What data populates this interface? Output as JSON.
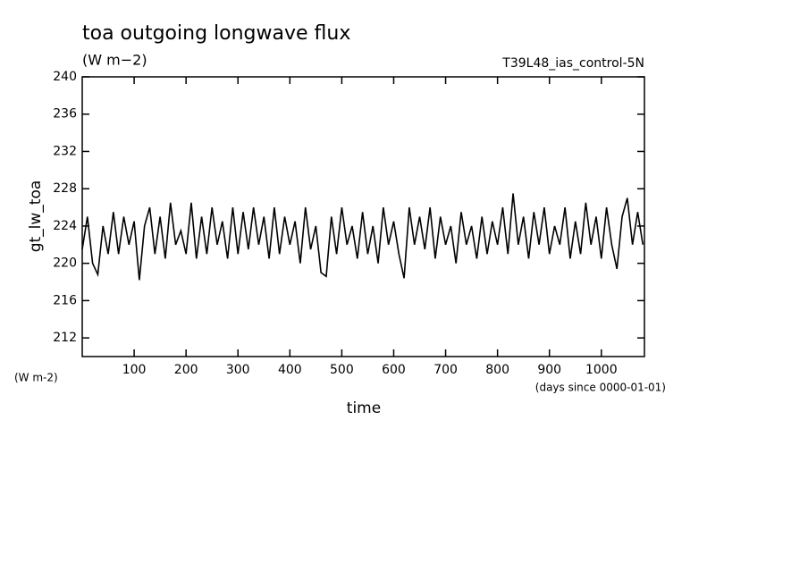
{
  "chart_data": {
    "type": "line",
    "title": "toa outgoing longwave flux",
    "subtitle": "(W m−2)",
    "annotation": "T39L48_ias_control-5N",
    "ylabel": "gt_lw_toa",
    "yunits": "(W m-2)",
    "xlabel": "time",
    "xunits": "(days since 0000-01-01)",
    "x": [
      0,
      10,
      20,
      30,
      40,
      50,
      60,
      70,
      80,
      90,
      100,
      110,
      120,
      130,
      140,
      150,
      160,
      170,
      180,
      190,
      200,
      210,
      220,
      230,
      240,
      250,
      260,
      270,
      280,
      290,
      300,
      310,
      320,
      330,
      340,
      350,
      360,
      370,
      380,
      390,
      400,
      410,
      420,
      430,
      440,
      450,
      460,
      470,
      480,
      490,
      500,
      510,
      520,
      530,
      540,
      550,
      560,
      570,
      580,
      590,
      600,
      610,
      620,
      630,
      640,
      650,
      660,
      670,
      680,
      690,
      700,
      710,
      720,
      730,
      740,
      750,
      760,
      770,
      780,
      790,
      800,
      810,
      820,
      830,
      840,
      850,
      860,
      870,
      880,
      890,
      900,
      910,
      920,
      930,
      940,
      950,
      960,
      970,
      980,
      990,
      1000,
      1010,
      1020,
      1030,
      1040,
      1050,
      1060,
      1070,
      1080
    ],
    "series": [
      {
        "name": "gt_lw_toa",
        "color": "#000000",
        "values": [
          221.5,
          225,
          220,
          218.8,
          224,
          221,
          225.5,
          221,
          225,
          222,
          224.5,
          218.2,
          224,
          226,
          221,
          225,
          220.5,
          226.5,
          222,
          223.5,
          221,
          226.5,
          220.5,
          225,
          221,
          226,
          222,
          224.5,
          220.5,
          226,
          221,
          225.5,
          221.5,
          226,
          222,
          225,
          220.5,
          226,
          221,
          225,
          222,
          224.5,
          220,
          226,
          221.5,
          224,
          219,
          218.6,
          225,
          221,
          226,
          222,
          224,
          220.5,
          225.5,
          221,
          224,
          220,
          226,
          222,
          224.5,
          221,
          218.4,
          226,
          222,
          225,
          221.5,
          226,
          220.5,
          225,
          222,
          224,
          220,
          225.5,
          222,
          224,
          220.5,
          225,
          221,
          224.5,
          222,
          226,
          221,
          227.5,
          222,
          225,
          220.5,
          225.5,
          222,
          226,
          221,
          224,
          222,
          226,
          220.5,
          224.5,
          221,
          226.5,
          222,
          225,
          220.5,
          226,
          222,
          219.4,
          225,
          227,
          222,
          225.5,
          222
        ]
      }
    ],
    "xlim": [
      0,
      1083
    ],
    "ylim": [
      210,
      240
    ],
    "xticks": [
      100,
      200,
      300,
      400,
      500,
      600,
      700,
      800,
      900,
      1000
    ],
    "yticks": [
      212,
      216,
      220,
      224,
      228,
      232,
      236,
      240
    ]
  }
}
